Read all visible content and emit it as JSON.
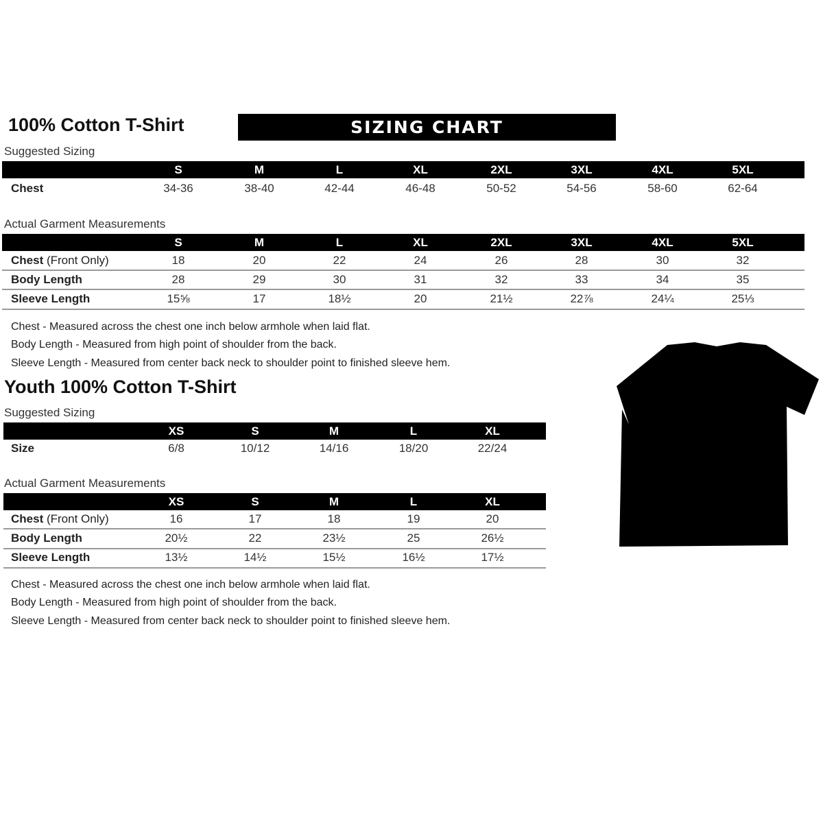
{
  "adult": {
    "title": "100% Cotton T-Shirt",
    "banner": "SIZING CHART",
    "suggested_label": "Suggested Sizing",
    "sizes": [
      "S",
      "M",
      "L",
      "XL",
      "2XL",
      "3XL",
      "4XL",
      "5XL"
    ],
    "suggested_rows": [
      {
        "label": "Chest",
        "values": [
          "34-36",
          "38-40",
          "42-44",
          "46-48",
          "50-52",
          "54-56",
          "58-60",
          "62-64"
        ]
      }
    ],
    "actual_label": "Actual Garment Measurements",
    "actual_rows": [
      {
        "label": "Chest",
        "label_extra": " (Front Only)",
        "values": [
          "18",
          "20",
          "22",
          "24",
          "26",
          "28",
          "30",
          "32"
        ]
      },
      {
        "label": "Body Length",
        "values": [
          "28",
          "29",
          "30",
          "31",
          "32",
          "33",
          "34",
          "35"
        ]
      },
      {
        "label": "Sleeve Length",
        "values": [
          "15⅝",
          "17",
          "18½",
          "20",
          "21½",
          "22⅞",
          "24¼",
          "25⅓"
        ]
      }
    ],
    "notes": [
      "Chest - Measured across the chest one inch below armhole when laid flat.",
      "Body Length - Measured from high point of shoulder from the back.",
      "Sleeve Length - Measured from center back neck to shoulder point to finished sleeve hem."
    ]
  },
  "youth": {
    "title": "Youth 100% Cotton T-Shirt",
    "suggested_label": "Suggested Sizing",
    "sizes": [
      "XS",
      "S",
      "M",
      "L",
      "XL"
    ],
    "suggested_rows": [
      {
        "label": "Size",
        "values": [
          "6/8",
          "10/12",
          "14/16",
          "18/20",
          "22/24"
        ]
      }
    ],
    "actual_label": "Actual Garment Measurements",
    "actual_rows": [
      {
        "label": "Chest",
        "label_extra": " (Front Only)",
        "values": [
          "16",
          "17",
          "18",
          "19",
          "20"
        ]
      },
      {
        "label": "Body Length",
        "values": [
          "20½",
          "22",
          "23½",
          "25",
          "26½"
        ]
      },
      {
        "label": "Sleeve Length",
        "values": [
          "13½",
          "14½",
          "15½",
          "16½",
          "17½"
        ]
      }
    ],
    "notes": [
      "Chest - Measured across the chest one inch below armhole when laid flat.",
      "Body Length - Measured from high point of shoulder from the back.",
      "Sleeve Length - Measured from center back neck to shoulder point to finished sleeve hem."
    ]
  },
  "tshirt_image": {
    "icon": "black-tshirt-image",
    "color": "#000000"
  }
}
